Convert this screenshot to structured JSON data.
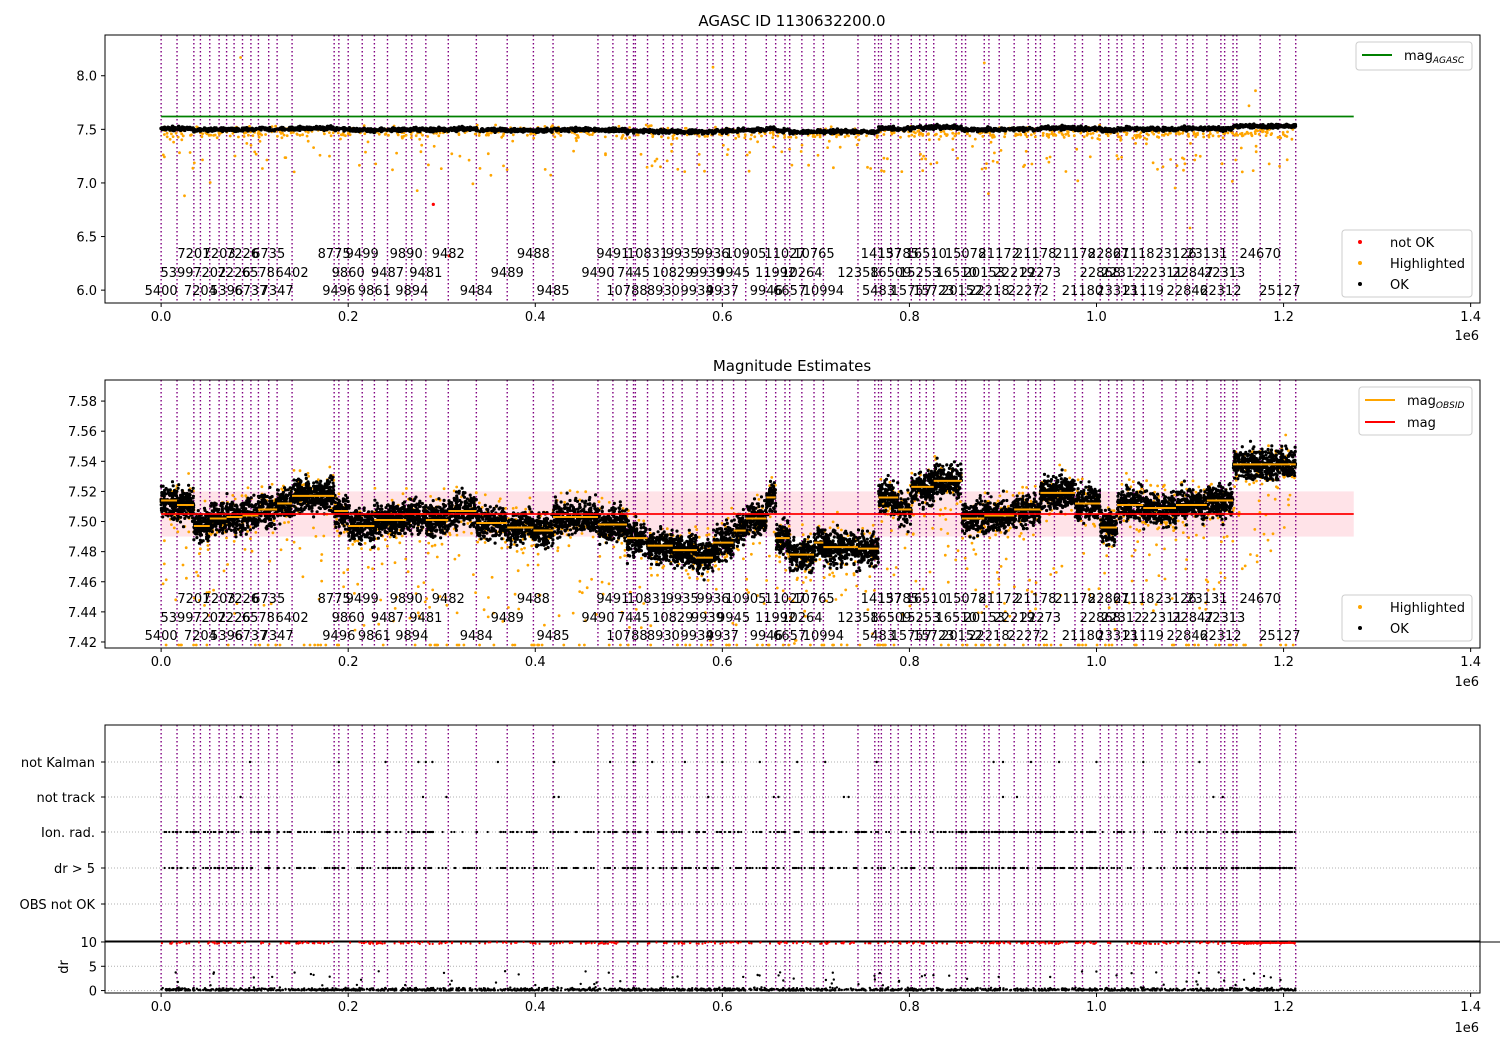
{
  "figure": {
    "top_title": "AGASC ID 1130632200.0",
    "middle_title": "Magnitude Estimates",
    "x_offset_label": "1e6"
  },
  "colors": {
    "agasc": "#008000",
    "mag": "#ff0000",
    "mag_obsid": "#ffa500",
    "highlighted": "#ffa500",
    "ok": "#000000",
    "not_ok": "#ff0000",
    "obsid_line": "#800080",
    "band": "#ffc0cb"
  },
  "x_axis": {
    "xlim": [
      -60000,
      1410000
    ],
    "ticks": [
      {
        "value": 0,
        "label": "0.0"
      },
      {
        "value": 200000,
        "label": "0.2"
      },
      {
        "value": 400000,
        "label": "0.4"
      },
      {
        "value": 600000,
        "label": "0.6"
      },
      {
        "value": 800000,
        "label": "0.8"
      },
      {
        "value": 1000000,
        "label": "1.0"
      },
      {
        "value": 1200000,
        "label": "1.2"
      },
      {
        "value": 1400000,
        "label": "1.4"
      }
    ]
  },
  "obsids": [
    {
      "x": 0,
      "label": "5400",
      "row": 0
    },
    {
      "x": 17000,
      "label": "5399",
      "row": 1
    },
    {
      "x": 35000,
      "label": "7201",
      "row": 2
    },
    {
      "x": 42000,
      "label": "7204",
      "row": 0
    },
    {
      "x": 52000,
      "label": "7202",
      "row": 1
    },
    {
      "x": 62000,
      "label": "7203",
      "row": 2
    },
    {
      "x": 70000,
      "label": "5396",
      "row": 0
    },
    {
      "x": 78000,
      "label": "7226",
      "row": 1
    },
    {
      "x": 87000,
      "label": "7226",
      "row": 2
    },
    {
      "x": 96000,
      "label": "6737",
      "row": 0
    },
    {
      "x": 104000,
      "label": "6578",
      "row": 1
    },
    {
      "x": 115000,
      "label": "6735",
      "row": 2
    },
    {
      "x": 124000,
      "label": "7347",
      "row": 0
    },
    {
      "x": 140000,
      "label": "6402",
      "row": 1
    },
    {
      "x": 185000,
      "label": "8775",
      "row": 2
    },
    {
      "x": 190000,
      "label": "9496",
      "row": 0
    },
    {
      "x": 200000,
      "label": "9860",
      "row": 1
    },
    {
      "x": 215000,
      "label": "9499",
      "row": 2
    },
    {
      "x": 228000,
      "label": "9861",
      "row": 0
    },
    {
      "x": 242000,
      "label": "9487",
      "row": 1
    },
    {
      "x": 262000,
      "label": "9890",
      "row": 2
    },
    {
      "x": 268000,
      "label": "9894",
      "row": 0
    },
    {
      "x": 283000,
      "label": "9481",
      "row": 1
    },
    {
      "x": 307000,
      "label": "9482",
      "row": 2
    },
    {
      "x": 337000,
      "label": "9484",
      "row": 0
    },
    {
      "x": 370000,
      "label": "9489",
      "row": 1
    },
    {
      "x": 398000,
      "label": "9488",
      "row": 2
    },
    {
      "x": 419000,
      "label": "9485",
      "row": 0
    },
    {
      "x": 467000,
      "label": "9490",
      "row": 1
    },
    {
      "x": 483000,
      "label": "9491",
      "row": 2
    },
    {
      "x": 498000,
      "label": "10788",
      "row": 0
    },
    {
      "x": 505000,
      "label": "7445",
      "row": 1
    },
    {
      "x": 520000,
      "label": "10831",
      "row": 2
    },
    {
      "x": 537000,
      "label": "8930",
      "row": 0
    },
    {
      "x": 547000,
      "label": "10829",
      "row": 1
    },
    {
      "x": 557000,
      "label": "9935",
      "row": 2
    },
    {
      "x": 573000,
      "label": "9934",
      "row": 0
    },
    {
      "x": 584000,
      "label": "9939",
      "row": 1
    },
    {
      "x": 590000,
      "label": "9936",
      "row": 2
    },
    {
      "x": 600000,
      "label": "9937",
      "row": 0
    },
    {
      "x": 612000,
      "label": "9945",
      "row": 1
    },
    {
      "x": 625000,
      "label": "10905",
      "row": 2
    },
    {
      "x": 647000,
      "label": "9946",
      "row": 0
    },
    {
      "x": 657000,
      "label": "11992",
      "row": 1
    },
    {
      "x": 667000,
      "label": "11027",
      "row": 2
    },
    {
      "x": 672000,
      "label": "6657",
      "row": 0
    },
    {
      "x": 685000,
      "label": "10264",
      "row": 1
    },
    {
      "x": 698000,
      "label": "10765",
      "row": 2
    },
    {
      "x": 708000,
      "label": "10994",
      "row": 0
    },
    {
      "x": 745000,
      "label": "12358",
      "row": 1
    },
    {
      "x": 767000,
      "label": "5483",
      "row": 0
    },
    {
      "x": 770000,
      "label": "14137",
      "row": 2
    },
    {
      "x": 780000,
      "label": "16509",
      "row": 1
    },
    {
      "x": 788000,
      "label": "15785",
      "row": 2
    },
    {
      "x": 802000,
      "label": "15757",
      "row": 0
    },
    {
      "x": 811000,
      "label": "15253",
      "row": 1
    },
    {
      "x": 818000,
      "label": "16510",
      "row": 2
    },
    {
      "x": 826000,
      "label": "15723",
      "row": 0
    },
    {
      "x": 850000,
      "label": "16510",
      "row": 1
    },
    {
      "x": 856000,
      "label": "20152",
      "row": 0
    },
    {
      "x": 860000,
      "label": "15078",
      "row": 2
    },
    {
      "x": 880000,
      "label": "20153",
      "row": 1
    },
    {
      "x": 885000,
      "label": "22218",
      "row": 0
    },
    {
      "x": 896000,
      "label": "21172",
      "row": 2
    },
    {
      "x": 912000,
      "label": "22219",
      "row": 1
    },
    {
      "x": 927000,
      "label": "22272",
      "row": 0
    },
    {
      "x": 935000,
      "label": "21178",
      "row": 2
    },
    {
      "x": 940000,
      "label": "22273",
      "row": 1
    },
    {
      "x": 977000,
      "label": "21178",
      "row": 2
    },
    {
      "x": 985000,
      "label": "21180",
      "row": 0
    },
    {
      "x": 1004000,
      "label": "22868",
      "row": 1
    },
    {
      "x": 1013000,
      "label": "22867",
      "row": 2
    },
    {
      "x": 1022000,
      "label": "23313",
      "row": 0
    },
    {
      "x": 1027000,
      "label": "22312",
      "row": 1
    },
    {
      "x": 1040000,
      "label": "21118",
      "row": 2
    },
    {
      "x": 1050000,
      "label": "21119",
      "row": 0
    },
    {
      "x": 1070000,
      "label": "22311",
      "row": 1
    },
    {
      "x": 1085000,
      "label": "23126",
      "row": 2
    },
    {
      "x": 1097000,
      "label": "22846",
      "row": 0
    },
    {
      "x": 1103000,
      "label": "22847",
      "row": 1
    },
    {
      "x": 1118000,
      "label": "23131",
      "row": 2
    },
    {
      "x": 1133000,
      "label": "22312",
      "row": 0
    },
    {
      "x": 1137000,
      "label": "22313",
      "row": 1
    },
    {
      "x": 1175000,
      "label": "24670",
      "row": 2
    },
    {
      "x": 1196000,
      "label": "25127",
      "row": 0
    }
  ],
  "obsid_lines": [
    0,
    17000,
    35000,
    42000,
    52000,
    62000,
    70000,
    78000,
    87000,
    96000,
    104000,
    115000,
    124000,
    140000,
    185000,
    190000,
    200000,
    215000,
    228000,
    242000,
    262000,
    268000,
    283000,
    307000,
    337000,
    370000,
    398000,
    419000,
    467000,
    483000,
    498000,
    505000,
    507000,
    520000,
    537000,
    547000,
    557000,
    573000,
    584000,
    590000,
    600000,
    612000,
    625000,
    647000,
    657000,
    667000,
    672000,
    685000,
    698000,
    708000,
    745000,
    763000,
    767000,
    770000,
    780000,
    788000,
    802000,
    811000,
    818000,
    826000,
    850000,
    856000,
    860000,
    880000,
    885000,
    896000,
    912000,
    927000,
    935000,
    940000,
    955000,
    977000,
    985000,
    1004000,
    1013000,
    1022000,
    1027000,
    1040000,
    1050000,
    1070000,
    1085000,
    1097000,
    1103000,
    1118000,
    1133000,
    1137000,
    1146000,
    1150000,
    1175000,
    1196000,
    1213000
  ],
  "panels": {
    "top": {
      "title": "AGASC ID 1130632200.0",
      "ylim": [
        5.88,
        8.38
      ],
      "yticks": [
        {
          "value": 6.0,
          "label": "6.0"
        },
        {
          "value": 6.5,
          "label": "6.5"
        },
        {
          "value": 7.0,
          "label": "7.0"
        },
        {
          "value": 7.5,
          "label": "7.5"
        },
        {
          "value": 8.0,
          "label": "8.0"
        }
      ],
      "legend_upper": [
        {
          "name": "mag",
          "sub": "AGASC",
          "color": "#008000"
        }
      ],
      "legend_lower": [
        {
          "name": "not OK",
          "color": "#ff0000"
        },
        {
          "name": "Highlighted",
          "color": "#ffa500"
        },
        {
          "name": "OK",
          "color": "#000000"
        }
      ]
    },
    "middle": {
      "title": "Magnitude Estimates",
      "ylim": [
        7.416,
        7.594
      ],
      "yticks": [
        {
          "value": 7.42,
          "label": "7.42"
        },
        {
          "value": 7.44,
          "label": "7.44"
        },
        {
          "value": 7.46,
          "label": "7.46"
        },
        {
          "value": 7.48,
          "label": "7.48"
        },
        {
          "value": 7.5,
          "label": "7.50"
        },
        {
          "value": 7.52,
          "label": "7.52"
        },
        {
          "value": 7.54,
          "label": "7.54"
        },
        {
          "value": 7.56,
          "label": "7.56"
        },
        {
          "value": 7.58,
          "label": "7.58"
        }
      ],
      "legend_upper": [
        {
          "name": "mag",
          "sub": "OBSID",
          "color": "#ffa500"
        },
        {
          "name": "mag",
          "sub": "",
          "color": "#ff0000"
        }
      ],
      "legend_lower": [
        {
          "name": "Highlighted",
          "color": "#ffa500"
        },
        {
          "name": "OK",
          "color": "#000000"
        }
      ]
    },
    "flags": {
      "categories": [
        "not Kalman",
        "not track",
        "Ion. rad.",
        "dr > 5",
        "OBS not OK"
      ]
    },
    "dr": {
      "ylabel": "dr",
      "yticks": [
        {
          "value": 0,
          "label": "0"
        },
        {
          "value": 5,
          "label": "5"
        },
        {
          "value": 10,
          "label": "10"
        }
      ]
    }
  },
  "chart_data": [
    {
      "type": "scatter",
      "title": "AGASC ID 1130632200.0",
      "xlabel": "",
      "ylabel": "",
      "xlim": [
        -60000,
        1410000
      ],
      "ylim": [
        5.88,
        8.38
      ],
      "x_multiplier": "1e6",
      "mag_agasc": 7.62,
      "mag_agasc_x_range": [
        0,
        1275000
      ],
      "series": [
        {
          "name": "OK",
          "description_level": 7.5,
          "x_range": [
            0,
            1213000
          ]
        },
        {
          "name": "Highlighted",
          "x_range": [
            0,
            1213000
          ]
        },
        {
          "name": "not OK",
          "points": [
            [
              291000,
              6.8
            ],
            [
              308000,
              6.32
            ]
          ]
        }
      ],
      "legend": [
        "mag_AGASC",
        "not OK",
        "Highlighted",
        "OK"
      ],
      "legend_placement": [
        "upper right",
        "lower right"
      ]
    },
    {
      "type": "scatter",
      "title": "Magnitude Estimates",
      "xlabel": "",
      "ylabel": "",
      "xlim": [
        -60000,
        1410000
      ],
      "ylim": [
        7.416,
        7.594
      ],
      "x_multiplier": "1e6",
      "mag": 7.505,
      "mag_band": [
        7.49,
        7.52
      ],
      "mag_x_range": [
        0,
        1275000
      ],
      "mag_obsid": [
        {
          "x": [
            0,
            17000
          ],
          "y": 7.514
        },
        {
          "x": [
            17000,
            35000
          ],
          "y": 7.511
        },
        {
          "x": [
            35000,
            52000
          ],
          "y": 7.497
        },
        {
          "x": [
            52000,
            70000
          ],
          "y": 7.502
        },
        {
          "x": [
            70000,
            87000
          ],
          "y": 7.503
        },
        {
          "x": [
            87000,
            104000
          ],
          "y": 7.504
        },
        {
          "x": [
            104000,
            124000
          ],
          "y": 7.508
        },
        {
          "x": [
            124000,
            140000
          ],
          "y": 7.512
        },
        {
          "x": [
            140000,
            185000
          ],
          "y": 7.517
        },
        {
          "x": [
            185000,
            200000
          ],
          "y": 7.507
        },
        {
          "x": [
            200000,
            228000
          ],
          "y": 7.497
        },
        {
          "x": [
            228000,
            262000
          ],
          "y": 7.501
        },
        {
          "x": [
            262000,
            283000
          ],
          "y": 7.505
        },
        {
          "x": [
            283000,
            307000
          ],
          "y": 7.501
        },
        {
          "x": [
            307000,
            337000
          ],
          "y": 7.507
        },
        {
          "x": [
            337000,
            370000
          ],
          "y": 7.499
        },
        {
          "x": [
            370000,
            398000
          ],
          "y": 7.496
        },
        {
          "x": [
            398000,
            419000
          ],
          "y": 7.494
        },
        {
          "x": [
            419000,
            467000
          ],
          "y": 7.503
        },
        {
          "x": [
            467000,
            498000
          ],
          "y": 7.498
        },
        {
          "x": [
            498000,
            520000
          ],
          "y": 7.489
        },
        {
          "x": [
            520000,
            547000
          ],
          "y": 7.484
        },
        {
          "x": [
            547000,
            573000
          ],
          "y": 7.481
        },
        {
          "x": [
            573000,
            590000
          ],
          "y": 7.476
        },
        {
          "x": [
            590000,
            612000
          ],
          "y": 7.486
        },
        {
          "x": [
            612000,
            625000
          ],
          "y": 7.494
        },
        {
          "x": [
            625000,
            647000
          ],
          "y": 7.502
        },
        {
          "x": [
            647000,
            657000
          ],
          "y": 7.516
        },
        {
          "x": [
            657000,
            672000
          ],
          "y": 7.489
        },
        {
          "x": [
            672000,
            698000
          ],
          "y": 7.478
        },
        {
          "x": [
            698000,
            708000
          ],
          "y": 7.486
        },
        {
          "x": [
            708000,
            745000
          ],
          "y": 7.483
        },
        {
          "x": [
            745000,
            767000
          ],
          "y": 7.482
        },
        {
          "x": [
            767000,
            788000
          ],
          "y": 7.516
        },
        {
          "x": [
            788000,
            802000
          ],
          "y": 7.508
        },
        {
          "x": [
            802000,
            826000
          ],
          "y": 7.523
        },
        {
          "x": [
            826000,
            856000
          ],
          "y": 7.527
        },
        {
          "x": [
            856000,
            880000
          ],
          "y": 7.502
        },
        {
          "x": [
            880000,
            912000
          ],
          "y": 7.504
        },
        {
          "x": [
            912000,
            940000
          ],
          "y": 7.508
        },
        {
          "x": [
            940000,
            977000
          ],
          "y": 7.519
        },
        {
          "x": [
            977000,
            1004000
          ],
          "y": 7.512
        },
        {
          "x": [
            1004000,
            1022000
          ],
          "y": 7.496
        },
        {
          "x": [
            1022000,
            1050000
          ],
          "y": 7.511
        },
        {
          "x": [
            1050000,
            1085000
          ],
          "y": 7.509
        },
        {
          "x": [
            1085000,
            1118000
          ],
          "y": 7.511
        },
        {
          "x": [
            1118000,
            1146000
          ],
          "y": 7.514
        },
        {
          "x": [
            1146000,
            1213000
          ],
          "y": 7.538
        }
      ],
      "legend": [
        "mag_OBSID",
        "mag",
        "Highlighted",
        "OK"
      ],
      "legend_placement": [
        "upper right",
        "lower right"
      ]
    },
    {
      "type": "scatter",
      "title": "",
      "xlabel": "",
      "ylabel": "",
      "xlim": [
        -60000,
        1410000
      ],
      "categories": [
        "OBS not OK",
        "dr > 5",
        "Ion. rad.",
        "not track",
        "not Kalman"
      ],
      "grid": true
    },
    {
      "type": "scatter",
      "title": "",
      "xlabel": "",
      "ylabel": "dr",
      "xlim": [
        -60000,
        1410000
      ],
      "ylim": [
        -0.5,
        10.2
      ],
      "reference_line": 10,
      "x_multiplier": "1e6",
      "grid": true
    }
  ]
}
